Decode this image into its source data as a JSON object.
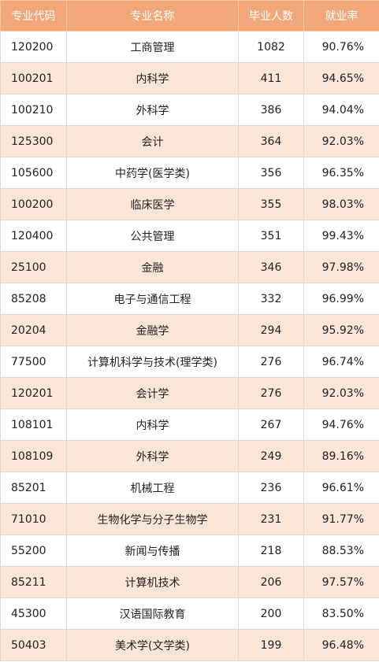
{
  "headers": {
    "code": "专业代码",
    "name": "专业名称",
    "graduates": "毕业人数",
    "employment_rate": "就业率"
  },
  "rows": [
    {
      "code": "120200",
      "name": "工商管理",
      "graduates": "1082",
      "rate": "90.76%"
    },
    {
      "code": "100201",
      "name": "内科学",
      "graduates": "411",
      "rate": "94.65%"
    },
    {
      "code": "100210",
      "name": "外科学",
      "graduates": "386",
      "rate": "94.04%"
    },
    {
      "code": "125300",
      "name": "会计",
      "graduates": "364",
      "rate": "92.03%"
    },
    {
      "code": "105600",
      "name": "中药学(医学类)",
      "graduates": "356",
      "rate": "96.35%"
    },
    {
      "code": "100200",
      "name": "临床医学",
      "graduates": "355",
      "rate": "98.03%"
    },
    {
      "code": "120400",
      "name": "公共管理",
      "graduates": "351",
      "rate": "99.43%"
    },
    {
      "code": "25100",
      "name": "金融",
      "graduates": "346",
      "rate": "97.98%"
    },
    {
      "code": "85208",
      "name": "电子与通信工程",
      "graduates": "332",
      "rate": "96.99%"
    },
    {
      "code": "20204",
      "name": "金融学",
      "graduates": "294",
      "rate": "95.92%"
    },
    {
      "code": "77500",
      "name": "计算机科学与技术(理学类)",
      "graduates": "276",
      "rate": "96.74%"
    },
    {
      "code": "120201",
      "name": "会计学",
      "graduates": "276",
      "rate": "92.03%"
    },
    {
      "code": "108101",
      "name": "内科学",
      "graduates": "267",
      "rate": "94.76%"
    },
    {
      "code": "108109",
      "name": "外科学",
      "graduates": "249",
      "rate": "89.16%"
    },
    {
      "code": "85201",
      "name": "机械工程",
      "graduates": "236",
      "rate": "96.61%"
    },
    {
      "code": "71010",
      "name": "生物化学与分子生物学",
      "graduates": "231",
      "rate": "91.77%"
    },
    {
      "code": "55200",
      "name": "新闻与传播",
      "graduates": "218",
      "rate": "88.53%"
    },
    {
      "code": "85211",
      "name": "计算机技术",
      "graduates": "206",
      "rate": "97.57%"
    },
    {
      "code": "45300",
      "name": "汉语国际教育",
      "graduates": "200",
      "rate": "83.50%"
    },
    {
      "code": "50403",
      "name": "美术学(文学类)",
      "graduates": "199",
      "rate": "96.48%"
    }
  ],
  "colors": {
    "header_bg": "#f2a77a",
    "header_text": "#ffffff",
    "stripe_bg": "#fbe5d6",
    "row_bg": "#ffffff",
    "border": "#d8d8d8"
  }
}
